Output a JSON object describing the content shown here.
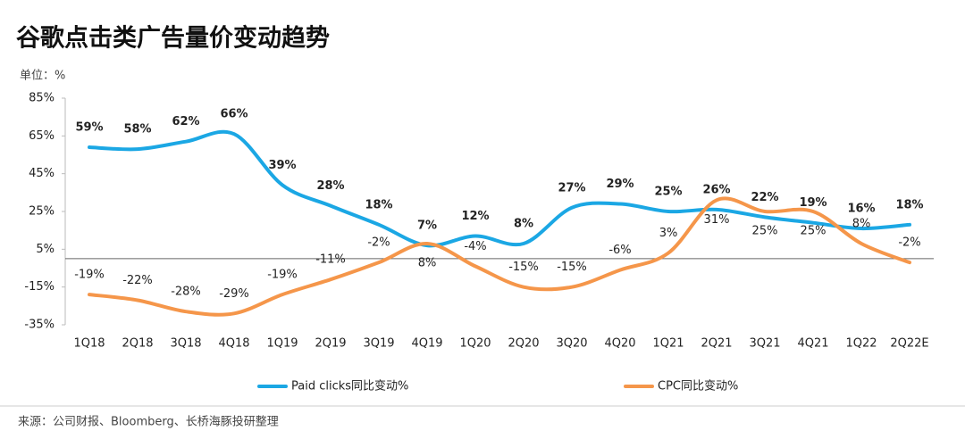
{
  "chart_data": {
    "type": "line",
    "title": "谷歌点击类广告量价变动趋势",
    "unit_label": "单位：%",
    "source": "来源：公司财报、Bloomberg、长桥海豚投研整理",
    "categories": [
      "1Q18",
      "2Q18",
      "3Q18",
      "4Q18",
      "1Q19",
      "2Q19",
      "3Q19",
      "4Q19",
      "1Q20",
      "2Q20",
      "3Q20",
      "4Q20",
      "1Q21",
      "2Q21",
      "3Q21",
      "4Q21",
      "1Q22",
      "2Q22E"
    ],
    "series": [
      {
        "name": "Paid clicks同比变动%",
        "color": "#1ba7e4",
        "values": [
          59,
          58,
          62,
          66,
          39,
          28,
          18,
          7,
          12,
          8,
          27,
          29,
          25,
          26,
          22,
          19,
          16,
          18
        ],
        "value_labels": [
          "59%",
          "58%",
          "62%",
          "66%",
          "39%",
          "28%",
          "18%",
          "7%",
          "12%",
          "8%",
          "27%",
          "29%",
          "25%",
          "26%",
          "22%",
          "19%",
          "16%",
          "18%"
        ]
      },
      {
        "name": "CPC同比变动%",
        "color": "#f5964a",
        "values": [
          -19,
          -22,
          -28,
          -29,
          -19,
          -11,
          -2,
          8,
          -4,
          -15,
          -15,
          -6,
          3,
          31,
          25,
          25,
          8,
          -2
        ],
        "value_labels": [
          "-19%",
          "-22%",
          "-28%",
          "-29%",
          "-19%",
          "-11%",
          "-2%",
          "8%",
          "-4%",
          "-15%",
          "-15%",
          "-6%",
          "3%",
          "31%",
          "25%",
          "25%",
          "8%",
          "-2%"
        ]
      }
    ],
    "ylim": [
      -35,
      85
    ],
    "yticks": [
      {
        "value": -35,
        "label": "-35%"
      },
      {
        "value": -15,
        "label": "-15%"
      },
      {
        "value": 5,
        "label": "5%"
      },
      {
        "value": 25,
        "label": "25%"
      },
      {
        "value": 45,
        "label": "45%"
      },
      {
        "value": 65,
        "label": "65%"
      },
      {
        "value": 85,
        "label": "85%"
      }
    ]
  }
}
